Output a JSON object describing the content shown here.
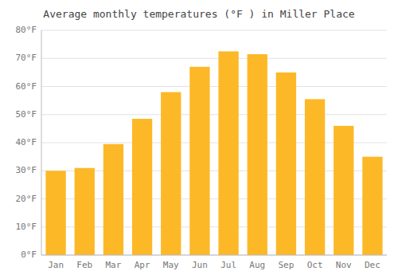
{
  "chart_data": {
    "type": "bar",
    "title": "Average monthly temperatures (°F ) in Miller Place",
    "categories": [
      "Jan",
      "Feb",
      "Mar",
      "Apr",
      "May",
      "Jun",
      "Jul",
      "Aug",
      "Sep",
      "Oct",
      "Nov",
      "Dec"
    ],
    "values": [
      30,
      31,
      39.5,
      48.5,
      58,
      67,
      72.5,
      71.5,
      65,
      55.5,
      46,
      35
    ],
    "color": "#FDB827",
    "ylim": [
      0,
      80
    ],
    "yticks": [
      {
        "value": 0,
        "label": "0°F"
      },
      {
        "value": 10,
        "label": "10°F"
      },
      {
        "value": 20,
        "label": "20°F"
      },
      {
        "value": 30,
        "label": "30°F"
      },
      {
        "value": 40,
        "label": "40°F"
      },
      {
        "value": 50,
        "label": "50°F"
      },
      {
        "value": 60,
        "label": "60°F"
      },
      {
        "value": 70,
        "label": "70°F"
      },
      {
        "value": 80,
        "label": "80°F"
      }
    ],
    "grid": true
  }
}
